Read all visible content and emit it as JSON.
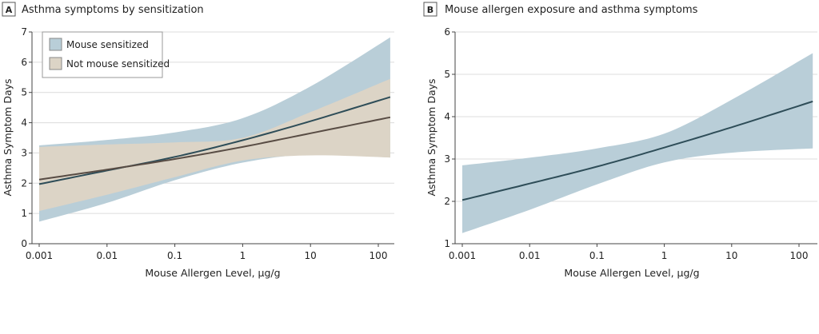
{
  "chart_data": [
    {
      "panel_label": "A",
      "title": "Asthma symptoms by sensitization",
      "type": "line",
      "xlabel": "Mouse Allergen Level, µg/g",
      "ylabel": "Asthma Symptom Days",
      "x_scale": "log",
      "xlim": [
        0.001,
        150
      ],
      "ylim": [
        0,
        7
      ],
      "x_ticks": [
        "0.001",
        "0.01",
        "0.1",
        "1",
        "10",
        "100"
      ],
      "y_ticks": [
        "0",
        "1",
        "2",
        "3",
        "4",
        "5",
        "6",
        "7"
      ],
      "grid": "horizontal",
      "legend_position": "top-left",
      "x": [
        0.001,
        0.01,
        0.1,
        1,
        10,
        150
      ],
      "series": [
        {
          "name": "Mouse sensitized",
          "color_band": "#b9ced8",
          "color_line": "#2e4d58",
          "values": [
            1.97,
            2.42,
            2.87,
            3.42,
            4.05,
            4.85
          ],
          "ci_upper": [
            3.25,
            3.43,
            3.68,
            4.15,
            5.2,
            6.82
          ],
          "ci_lower": [
            0.73,
            1.35,
            2.1,
            2.68,
            2.95,
            2.85
          ]
        },
        {
          "name": "Not mouse sensitized",
          "color_band": "#dcd4c6",
          "color_line": "#584c44",
          "values": [
            2.12,
            2.45,
            2.8,
            3.2,
            3.65,
            4.18
          ],
          "ci_upper": [
            3.2,
            3.28,
            3.35,
            3.5,
            4.35,
            5.45
          ],
          "ci_lower": [
            1.08,
            1.62,
            2.2,
            2.75,
            2.92,
            2.85
          ]
        }
      ]
    },
    {
      "panel_label": "B",
      "title": "Mouse allergen exposure and asthma symptoms",
      "type": "line",
      "xlabel": "Mouse Allergen Level, µg/g",
      "ylabel": "Asthma Symptom Days",
      "x_scale": "log",
      "xlim": [
        0.001,
        160
      ],
      "ylim": [
        1,
        6
      ],
      "x_ticks": [
        "0.001",
        "0.01",
        "0.1",
        "1",
        "10",
        "100"
      ],
      "y_ticks": [
        "1",
        "2",
        "3",
        "4",
        "5",
        "6"
      ],
      "grid": "horizontal",
      "x": [
        0.001,
        0.01,
        0.1,
        1,
        10,
        160
      ],
      "series": [
        {
          "color_band": "#b9ced8",
          "color_line": "#2e4d58",
          "values": [
            2.03,
            2.42,
            2.82,
            3.27,
            3.75,
            4.36
          ],
          "ci_upper": [
            2.85,
            3.03,
            3.25,
            3.6,
            4.4,
            5.5
          ],
          "ci_lower": [
            1.25,
            1.8,
            2.4,
            2.92,
            3.15,
            3.25
          ]
        }
      ]
    }
  ]
}
